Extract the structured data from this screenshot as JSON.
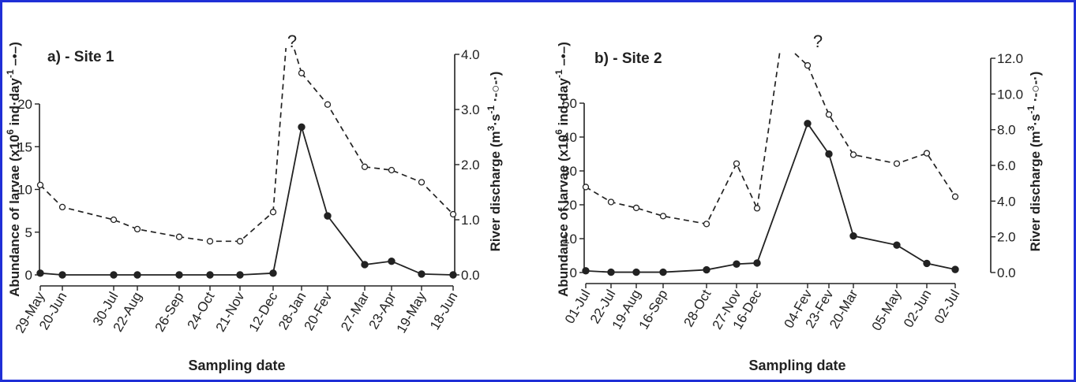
{
  "colors": {
    "frame": "#1f2fd6",
    "ink": "#222222"
  },
  "chart_data": [
    {
      "type": "line",
      "panel_label": "a) - Site 1",
      "xlabel": "Sampling date",
      "ylabel_left": "Abundance of larvae (x10",
      "ylabel_left_sup": "6",
      "ylabel_left_mid": " ind·day",
      "ylabel_left_sup2": "-1",
      "ylabel_left_end": " –•–)",
      "ylabel_right": "River discharge (m",
      "ylabel_right_sup": "3",
      "ylabel_right_mid": "·s",
      "ylabel_right_sup2": "-1",
      "ylabel_right_end": " ·-○-·)",
      "ylim_left": [
        0,
        20
      ],
      "yticks_left": [
        "0",
        "5",
        "10",
        "15",
        "20"
      ],
      "ylim_right": [
        0.0,
        4.0
      ],
      "yticks_right": [
        "0.0",
        "1.0",
        "2.0",
        "3.0",
        "4.0"
      ],
      "categories": [
        "29-May",
        "20-Jun",
        "30-Jul",
        "22-Aug",
        "26-Sep",
        "24-Oct",
        "21-Nov",
        "12-Dec",
        "28-Jan",
        "20-Fev",
        "27-Mar",
        "23-Apr",
        "19-May",
        "18-Jun"
      ],
      "annotation": "?",
      "series": [
        {
          "axis": "left",
          "style": "solid-filled",
          "values": [
            0.2,
            0,
            0,
            0,
            0,
            0,
            0,
            0.2,
            17.3,
            6.9,
            1.2,
            1.6,
            0.1,
            0
          ]
        },
        {
          "axis": "right",
          "style": "dashed-open",
          "values": [
            1.63,
            1.23,
            1.0,
            0.83,
            0.69,
            0.61,
            0.61,
            1.14,
            3.66,
            3.09,
            1.96,
            1.9,
            1.68,
            1.1
          ]
        }
      ]
    },
    {
      "type": "line",
      "panel_label": "b) - Site 2",
      "xlabel": "Sampling date",
      "ylabel_left": "Abundance of larvae (x10",
      "ylabel_left_sup": "6",
      "ylabel_left_mid": " ind·day",
      "ylabel_left_sup2": "-1",
      "ylabel_left_end": " –•–)",
      "ylabel_right": "River discharge (m",
      "ylabel_right_sup": "3",
      "ylabel_right_mid": "·s",
      "ylabel_right_sup2": "-1",
      "ylabel_right_end": " ·-○-·)",
      "ylim_left": [
        0,
        50
      ],
      "yticks_left": [
        "0",
        "10",
        "20",
        "30",
        "40",
        "50"
      ],
      "ylim_right": [
        0.0,
        12.0
      ],
      "yticks_right": [
        "0.0",
        "2.0",
        "4.0",
        "6.0",
        "8.0",
        "10.0",
        "12.0"
      ],
      "categories": [
        "01-Jul",
        "22-Jul",
        "19-Aug",
        "16-Sep",
        "28-Oct",
        "27-Nov",
        "16-Dec",
        "04-Fev",
        "23-Fev",
        "20-Mar",
        "05-May",
        "02-Jun",
        "02-Jul"
      ],
      "annotation": "?",
      "series": [
        {
          "axis": "left",
          "style": "solid-filled",
          "values": [
            0.5,
            0.1,
            0.1,
            0.1,
            0.8,
            2.5,
            2.8,
            44,
            35,
            10.8,
            8.1,
            2.7,
            0.9
          ]
        },
        {
          "axis": "right",
          "style": "dashed-open",
          "values": [
            4.79,
            3.95,
            3.62,
            3.16,
            2.72,
            6.1,
            3.6,
            11.6,
            8.85,
            6.6,
            6.1,
            6.68,
            4.25
          ]
        }
      ]
    }
  ]
}
